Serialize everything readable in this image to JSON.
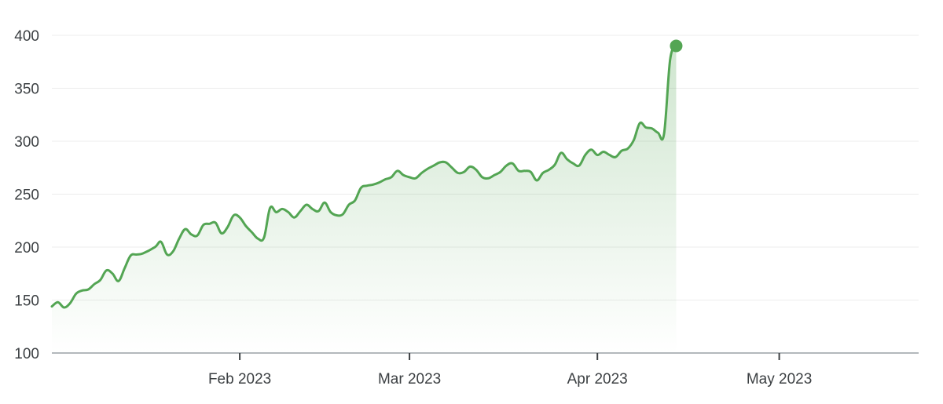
{
  "chart_data": {
    "type": "area",
    "title": "",
    "xlabel": "",
    "ylabel": "",
    "ylim": [
      100,
      400
    ],
    "xlim": [
      "2023-01-01",
      "2023-05-24"
    ],
    "grid": true,
    "colors": {
      "line": "#53a553",
      "fill": "#53a553",
      "grid": "#ececec",
      "axis": "#9aa0a6",
      "text": "#3c4043"
    },
    "y_ticks": [
      {
        "value": 100,
        "label": "100"
      },
      {
        "value": 150,
        "label": "150"
      },
      {
        "value": 200,
        "label": "200"
      },
      {
        "value": 250,
        "label": "250"
      },
      {
        "value": 300,
        "label": "300"
      },
      {
        "value": 350,
        "label": "350"
      },
      {
        "value": 400,
        "label": "400"
      }
    ],
    "x_ticks": [
      {
        "date": "2023-02-01",
        "label": "Feb 2023"
      },
      {
        "date": "2023-03-01",
        "label": "Mar 2023"
      },
      {
        "date": "2023-04-01",
        "label": "Apr 2023"
      },
      {
        "date": "2023-05-01",
        "label": "May 2023"
      }
    ],
    "series": [
      {
        "marker_last": true,
        "points": [
          [
            "2023-01-01",
            144
          ],
          [
            "2023-01-02",
            148
          ],
          [
            "2023-01-03",
            143
          ],
          [
            "2023-01-04",
            147
          ],
          [
            "2023-01-05",
            156
          ],
          [
            "2023-01-06",
            159
          ],
          [
            "2023-01-07",
            160
          ],
          [
            "2023-01-08",
            165
          ],
          [
            "2023-01-09",
            169
          ],
          [
            "2023-01-10",
            178
          ],
          [
            "2023-01-11",
            175
          ],
          [
            "2023-01-12",
            168
          ],
          [
            "2023-01-13",
            180
          ],
          [
            "2023-01-14",
            192
          ],
          [
            "2023-01-15",
            193
          ],
          [
            "2023-01-16",
            194
          ],
          [
            "2023-01-18",
            200
          ],
          [
            "2023-01-19",
            205
          ],
          [
            "2023-01-20",
            193
          ],
          [
            "2023-01-21",
            196
          ],
          [
            "2023-01-22",
            208
          ],
          [
            "2023-01-23",
            217
          ],
          [
            "2023-01-24",
            212
          ],
          [
            "2023-01-25",
            211
          ],
          [
            "2023-01-26",
            221
          ],
          [
            "2023-01-27",
            222
          ],
          [
            "2023-01-28",
            223
          ],
          [
            "2023-01-29",
            213
          ],
          [
            "2023-01-30",
            219
          ],
          [
            "2023-01-31",
            230
          ],
          [
            "2023-02-01",
            228
          ],
          [
            "2023-02-02",
            220
          ],
          [
            "2023-02-03",
            214
          ],
          [
            "2023-02-04",
            208
          ],
          [
            "2023-02-05",
            209
          ],
          [
            "2023-02-06",
            237
          ],
          [
            "2023-02-07",
            233
          ],
          [
            "2023-02-08",
            236
          ],
          [
            "2023-02-09",
            233
          ],
          [
            "2023-02-10",
            228
          ],
          [
            "2023-02-11",
            234
          ],
          [
            "2023-02-12",
            240
          ],
          [
            "2023-02-13",
            236
          ],
          [
            "2023-02-14",
            234
          ],
          [
            "2023-02-15",
            242
          ],
          [
            "2023-02-16",
            233
          ],
          [
            "2023-02-17",
            230
          ],
          [
            "2023-02-18",
            231
          ],
          [
            "2023-02-19",
            240
          ],
          [
            "2023-02-20",
            244
          ],
          [
            "2023-02-21",
            256
          ],
          [
            "2023-02-22",
            258
          ],
          [
            "2023-02-23",
            259
          ],
          [
            "2023-02-24",
            261
          ],
          [
            "2023-02-25",
            264
          ],
          [
            "2023-02-26",
            266
          ],
          [
            "2023-02-27",
            272
          ],
          [
            "2023-02-28",
            268
          ],
          [
            "2023-03-01",
            266
          ],
          [
            "2023-03-02",
            265
          ],
          [
            "2023-03-03",
            270
          ],
          [
            "2023-03-04",
            274
          ],
          [
            "2023-03-05",
            277
          ],
          [
            "2023-03-06",
            280
          ],
          [
            "2023-03-07",
            280
          ],
          [
            "2023-03-08",
            275
          ],
          [
            "2023-03-09",
            270
          ],
          [
            "2023-03-10",
            271
          ],
          [
            "2023-03-11",
            276
          ],
          [
            "2023-03-12",
            273
          ],
          [
            "2023-03-13",
            266
          ],
          [
            "2023-03-14",
            265
          ],
          [
            "2023-03-15",
            268
          ],
          [
            "2023-03-16",
            271
          ],
          [
            "2023-03-17",
            277
          ],
          [
            "2023-03-18",
            279
          ],
          [
            "2023-03-19",
            272
          ],
          [
            "2023-03-20",
            272
          ],
          [
            "2023-03-21",
            271
          ],
          [
            "2023-03-22",
            263
          ],
          [
            "2023-03-23",
            270
          ],
          [
            "2023-03-24",
            273
          ],
          [
            "2023-03-25",
            278
          ],
          [
            "2023-03-26",
            289
          ],
          [
            "2023-03-27",
            283
          ],
          [
            "2023-03-28",
            279
          ],
          [
            "2023-03-29",
            277
          ],
          [
            "2023-03-30",
            287
          ],
          [
            "2023-03-31",
            292
          ],
          [
            "2023-04-01",
            287
          ],
          [
            "2023-04-02",
            290
          ],
          [
            "2023-04-03",
            287
          ],
          [
            "2023-04-04",
            285
          ],
          [
            "2023-04-05",
            291
          ],
          [
            "2023-04-06",
            293
          ],
          [
            "2023-04-07",
            301
          ],
          [
            "2023-04-08",
            317
          ],
          [
            "2023-04-09",
            313
          ],
          [
            "2023-04-10",
            312
          ],
          [
            "2023-04-11",
            308
          ],
          [
            "2023-04-12",
            307
          ],
          [
            "2023-04-13",
            377
          ],
          [
            "2023-04-14",
            390
          ]
        ]
      }
    ]
  }
}
